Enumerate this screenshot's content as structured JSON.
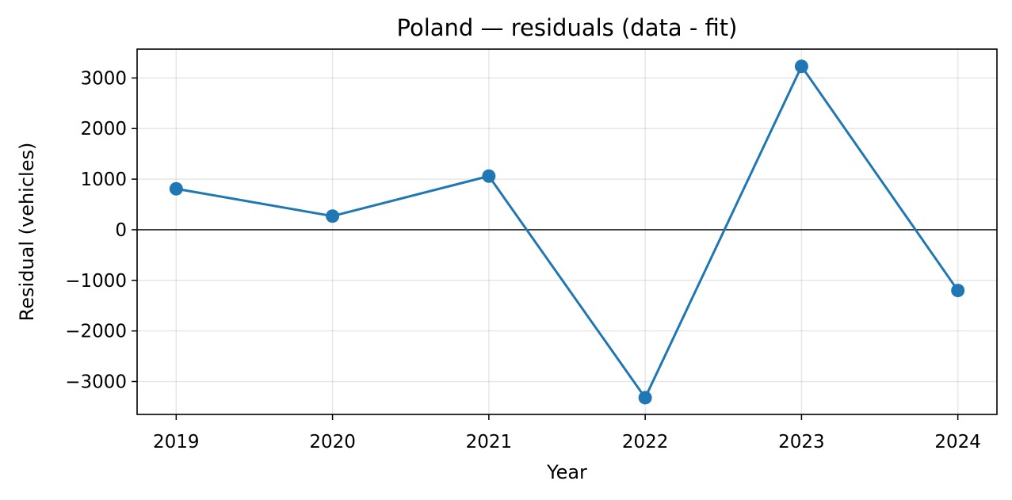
{
  "chart_data": {
    "type": "line",
    "title": "Poland — residuals (data - fit)",
    "xlabel": "Year",
    "ylabel": "Residual (vehicles)",
    "x": [
      2019,
      2020,
      2021,
      2022,
      2023,
      2024
    ],
    "x_tick_labels": [
      "2019",
      "2020",
      "2021",
      "2022",
      "2023",
      "2024"
    ],
    "y_ticks": [
      -3000,
      -2000,
      -1000,
      0,
      1000,
      2000,
      3000
    ],
    "y_tick_labels": [
      "−3000",
      "−2000",
      "−1000",
      "0",
      "1000",
      "2000",
      "3000"
    ],
    "xlim": [
      2018.75,
      2024.25
    ],
    "ylim": [
      -3650,
      3570
    ],
    "grid": true,
    "reference_line_y": 0,
    "series": [
      {
        "values": [
          810,
          270,
          1060,
          -3320,
          3230,
          -1200
        ],
        "color": "#1f77b4",
        "marker": "circle"
      }
    ]
  }
}
